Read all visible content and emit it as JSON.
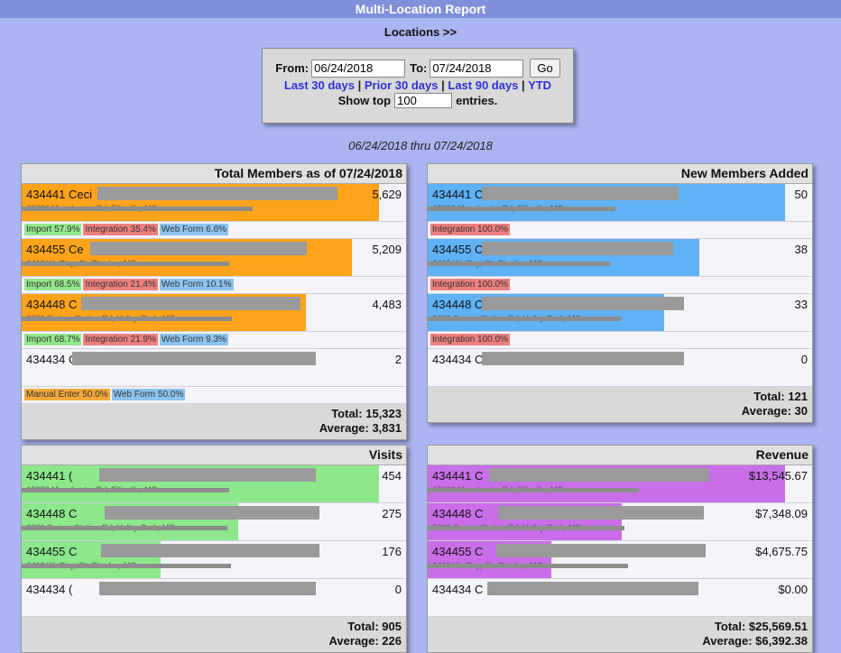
{
  "title": "Multi-Location Report",
  "locations_link": "Locations >>",
  "filter": {
    "from_label": "From:",
    "from_value": "06/24/2018",
    "to_label": "To:",
    "to_value": "07/24/2018",
    "go_label": "Go",
    "quick_links": [
      "Last 30 days",
      "Prior 30 days",
      "Last 90 days",
      "YTD"
    ],
    "show_top_label": "Show top",
    "show_top_value": "100",
    "entries_label": "entries."
  },
  "range_caption": "06/24/2018 thru 07/24/2018",
  "panels": {
    "total_members": {
      "title": "Total Members as of 07/24/2018",
      "bar_color": "#ffa31a",
      "rows": [
        {
          "name": "434441 Ceci",
          "value": "5,629",
          "fraction": 1.0,
          "address": "15000 Manchester Rd, Ellisville, MO",
          "breakdown": [
            {
              "label": "Import 57.9%",
              "type": "import"
            },
            {
              "label": "Integration 35.4%",
              "type": "integration"
            },
            {
              "label": "Web Form 6.6%",
              "type": "webform"
            }
          ]
        },
        {
          "name": "434455 Ce",
          "value": "5,209",
          "fraction": 0.925,
          "address": "2410 W. Clay, St. Charles, MO",
          "breakdown": [
            {
              "label": "Import 68.5%",
              "type": "import"
            },
            {
              "label": "Integration 21.4%",
              "type": "integration"
            },
            {
              "label": "Web Form 10.1%",
              "type": "webform"
            }
          ]
        },
        {
          "name": "434448 C",
          "value": "4,483",
          "fraction": 0.796,
          "address": "2001 Smizer Station Rd, Valley Park, MO",
          "breakdown": [
            {
              "label": "Import 68.7%",
              "type": "import"
            },
            {
              "label": "Integration 21.9%",
              "type": "integration"
            },
            {
              "label": "Web Form 9.3%",
              "type": "webform"
            }
          ]
        },
        {
          "name": "434434 C",
          "value": "2",
          "fraction": 0.0,
          "address": "",
          "breakdown": [
            {
              "label": "Manual Enter 50.0%",
              "type": "manual"
            },
            {
              "label": "Web Form 50.0%",
              "type": "webform"
            }
          ]
        }
      ],
      "total": "Total: 15,323",
      "average": "Average: 3,831"
    },
    "new_members": {
      "title": "New Members Added",
      "bar_color": "#5fb2f5",
      "rows": [
        {
          "name": "434441 C",
          "value": "50",
          "fraction": 1.0,
          "address": "15000 Manchester Rd, Ellisville, MO",
          "breakdown": [
            {
              "label": "Integration 100.0%",
              "type": "integration"
            }
          ]
        },
        {
          "name": "434455 C",
          "value": "38",
          "fraction": 0.76,
          "address": "2410 W. Clay, St. Charles, MO",
          "breakdown": [
            {
              "label": "Integration 100.0%",
              "type": "integration"
            }
          ]
        },
        {
          "name": "434448 C",
          "value": "33",
          "fraction": 0.66,
          "address": "2001 Smizer Station Rd, Valley Park, MO",
          "breakdown": [
            {
              "label": "Integration 100.0%",
              "type": "integration"
            }
          ]
        },
        {
          "name": "434434 C",
          "value": "0",
          "fraction": 0.0,
          "address": "",
          "breakdown": []
        }
      ],
      "total": "Total: 121",
      "average": "Average: 30"
    },
    "visits": {
      "title": "Visits",
      "bar_color": "#8ce88a",
      "rows": [
        {
          "name": "434441 (",
          "value": "454",
          "fraction": 1.0,
          "address": "15000 Manchester Rd, Ellisville, MO",
          "breakdown": []
        },
        {
          "name": "434448 C",
          "value": "275",
          "fraction": 0.606,
          "address": "2001 Smizer Station Rd, Valley Park, MO",
          "breakdown": []
        },
        {
          "name": "434455 C",
          "value": "176",
          "fraction": 0.388,
          "address": "2410 W. Clay, St. Charles, MO",
          "breakdown": []
        },
        {
          "name": "434434 (",
          "value": "0",
          "fraction": 0.0,
          "address": "",
          "breakdown": []
        }
      ],
      "total": "Total: 905",
      "average": "Average: 226"
    },
    "revenue": {
      "title": "Revenue",
      "bar_color": "#c96ee8",
      "rows": [
        {
          "name": "434441 C",
          "value": "$13,545.67",
          "fraction": 1.0,
          "address": "15000 Manchester Rd, Ellisville, MO",
          "breakdown": []
        },
        {
          "name": "434448 C",
          "value": "$7,348.09",
          "fraction": 0.542,
          "address": "2001 Smizer Station Rd, Valley Park, MO",
          "breakdown": []
        },
        {
          "name": "434455 C",
          "value": "$4,675.75",
          "fraction": 0.345,
          "address": "2410 W. Clay, St. Charles, MO",
          "breakdown": []
        },
        {
          "name": "434434 C",
          "value": "$0.00",
          "fraction": 0.0,
          "address": "",
          "breakdown": []
        }
      ],
      "total": "Total: $25,569.51",
      "average": "Average: $6,392.38"
    }
  }
}
